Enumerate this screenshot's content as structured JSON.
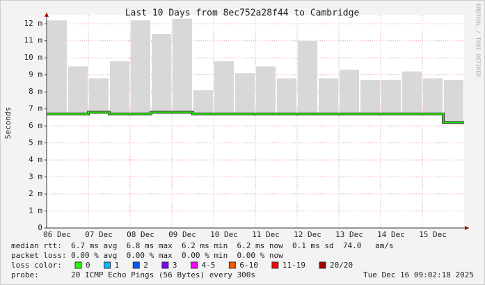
{
  "chart_data": {
    "type": "line",
    "title": "Last 10 Days from 8ec752a28f44 to Cambridge",
    "y_label": "Seconds",
    "watermark": "RRDTOOL / TOBI OETIKER",
    "categories": [
      "06 Dec",
      null,
      "07 Dec",
      null,
      "08 Dec",
      null,
      "09 Dec",
      null,
      "10 Dec",
      null,
      "11 Dec",
      null,
      "12 Dec",
      null,
      "13 Dec",
      null,
      "14 Dec",
      null,
      "15 Dec",
      null
    ],
    "values": [
      0.0067,
      0.0067,
      0.0068,
      0.0067,
      0.0067,
      0.0068,
      0.0068,
      0.0067,
      0.0067,
      0.0067,
      0.0067,
      0.0067,
      0.0067,
      0.0067,
      0.0067,
      0.0067,
      0.0067,
      0.0067,
      0.0067,
      0.0062
    ],
    "smoke_max": [
      0.0122,
      0.0095,
      0.0088,
      0.0098,
      0.0122,
      0.0114,
      0.0123,
      0.0081,
      0.0098,
      0.0091,
      0.0095,
      0.0088,
      0.011,
      0.0088,
      0.0093,
      0.0087,
      0.0087,
      0.0092,
      0.0088,
      0.0087
    ],
    "color": "#22dd00",
    "smoke_color": "#d8d8d8",
    "ylim": [
      0,
      0.0125
    ],
    "yticks": [
      0,
      {
        "value": 0.001,
        "label": "1 m"
      },
      {
        "value": 0.002,
        "label": "2 m"
      },
      {
        "value": 0.003,
        "label": "3 m"
      },
      {
        "value": 0.004,
        "label": "4 m"
      },
      {
        "value": 0.005,
        "label": "5 m"
      },
      {
        "value": 0.006,
        "label": "6 m"
      },
      {
        "value": 0.007,
        "label": "7 m"
      },
      {
        "value": 0.008,
        "label": "8 m"
      },
      {
        "value": 0.009,
        "label": "9 m"
      },
      {
        "value": 0.01,
        "label": "10 m"
      },
      {
        "value": 0.011,
        "label": "11 m"
      },
      {
        "value": 0.012,
        "label": "12 m"
      }
    ],
    "grid": true,
    "footer": {
      "median_rtt": "median rtt:  6.7 ms avg  6.8 ms max  6.2 ms min  6.2 ms now  0.1 ms sd  74.0   am/s",
      "packet_loss": "packet loss: 0.00 % avg  0.00 % max  0.00 % min  0.00 % now",
      "loss_color_label": "loss color:",
      "loss_colors": [
        {
          "label": "0",
          "color": "#26ff00"
        },
        {
          "label": "1",
          "color": "#00b8ff"
        },
        {
          "label": "2",
          "color": "#0059ff"
        },
        {
          "label": "3",
          "color": "#7e00ff"
        },
        {
          "label": "4-5",
          "color": "#ff00ff"
        },
        {
          "label": "6-10",
          "color": "#ff5500"
        },
        {
          "label": "11-19",
          "color": "#ff0000"
        },
        {
          "label": "20/20",
          "color": "#a10000"
        }
      ],
      "probe": "probe:       20 ICMP Echo Pings (56 Bytes) every 300s",
      "timestamp": "Tue Dec 16 09:02:18 2025"
    }
  }
}
